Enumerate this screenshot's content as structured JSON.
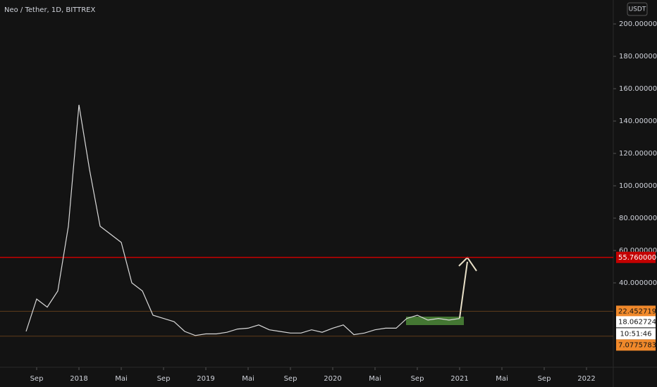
{
  "chart_data": {
    "type": "line",
    "title": "Neo / Tether, 1D, BITTREX",
    "currency": "USDT",
    "x": [
      "2017-08",
      "2017-09",
      "2017-10",
      "2017-11",
      "2017-12",
      "2018-01",
      "2018-02",
      "2018-03",
      "2018-04",
      "2018-05",
      "2018-06",
      "2018-07",
      "2018-08",
      "2018-09",
      "2018-10",
      "2018-11",
      "2018-12",
      "2019-01",
      "2019-02",
      "2019-03",
      "2019-04",
      "2019-05",
      "2019-06",
      "2019-07",
      "2019-08",
      "2019-09",
      "2019-10",
      "2019-11",
      "2019-12",
      "2020-01",
      "2020-02",
      "2020-03",
      "2020-04",
      "2020-05",
      "2020-06",
      "2020-07",
      "2020-08",
      "2020-09",
      "2020-10",
      "2020-11",
      "2020-12",
      "2021-01"
    ],
    "series": [
      {
        "color": "#d9d9d9",
        "values": [
          10,
          30,
          25,
          35,
          75,
          150,
          110,
          75,
          70,
          65,
          40,
          35,
          20,
          18,
          16,
          10,
          7.5,
          8.5,
          8.5,
          9.5,
          11.5,
          12,
          14,
          11,
          10,
          9,
          9,
          11,
          9.5,
          12,
          14,
          8,
          9,
          11,
          12,
          12,
          18,
          20,
          17,
          18,
          17,
          18
        ]
      }
    ],
    "xlim": [
      "2017-06",
      "2022-04"
    ],
    "xticks": [
      {
        "value": "2017-09",
        "label": "Sep"
      },
      {
        "value": "2018-01",
        "label": "2018"
      },
      {
        "value": "2018-05",
        "label": "Mai"
      },
      {
        "value": "2018-09",
        "label": "Sep"
      },
      {
        "value": "2019-01",
        "label": "2019"
      },
      {
        "value": "2019-05",
        "label": "Mai"
      },
      {
        "value": "2019-09",
        "label": "Sep"
      },
      {
        "value": "2020-01",
        "label": "2020"
      },
      {
        "value": "2020-05",
        "label": "Mai"
      },
      {
        "value": "2020-09",
        "label": "Sep"
      },
      {
        "value": "2021-01",
        "label": "2021"
      },
      {
        "value": "2021-05",
        "label": "Mai"
      },
      {
        "value": "2021-09",
        "label": "Sep"
      },
      {
        "value": "2022-01",
        "label": "2022"
      }
    ],
    "ylim": [
      -11.3,
      214.8
    ],
    "yticks": [
      {
        "value": 40,
        "label": "40.00000000"
      },
      {
        "value": 60,
        "label": "60.00000000"
      },
      {
        "value": 80,
        "label": "80.00000000"
      },
      {
        "value": 100,
        "label": "100.00000000"
      },
      {
        "value": 120,
        "label": "120.00000000"
      },
      {
        "value": 140,
        "label": "140.00000000"
      },
      {
        "value": 160,
        "label": "160.00000000"
      },
      {
        "value": 180,
        "label": "180.00000000"
      },
      {
        "value": 200,
        "label": "200.00000000"
      }
    ],
    "grid": false,
    "price_lines": [
      {
        "value": {
          "value": 55.76,
          "label": "55.76000000"
        },
        "color": "#c40000"
      },
      {
        "value": 22.45271995,
        "color": "#f0892b"
      },
      {
        "value": 7.07757832,
        "color": "#f0892b"
      }
    ],
    "last_price": 18.06272457,
    "countdown": "10:51:46"
  }
}
